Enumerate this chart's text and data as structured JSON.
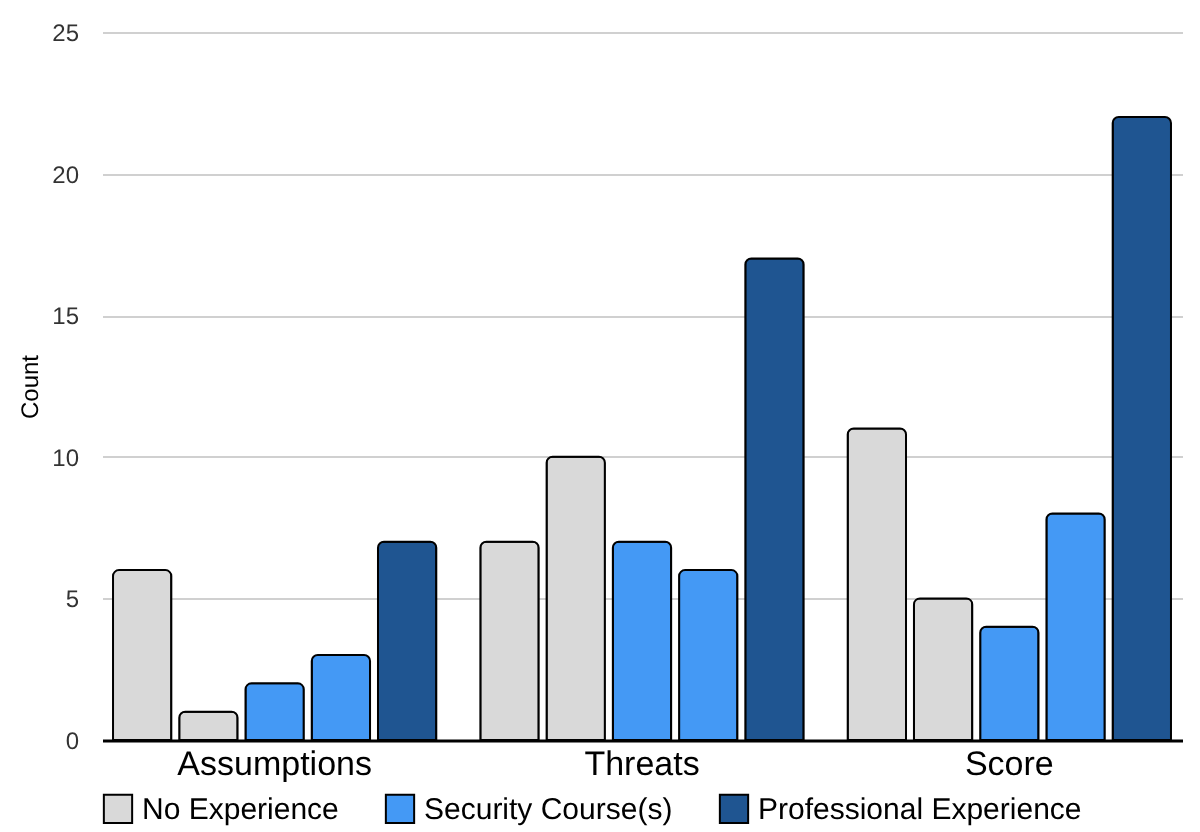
{
  "chart_data": {
    "type": "bar",
    "ylabel": "Count",
    "categories": [
      "Assumptions",
      "Threats",
      "Score"
    ],
    "series": [
      {
        "name": "No Experience",
        "color": "#d9d9d9",
        "values": [
          6,
          7,
          11
        ]
      },
      {
        "color": "#d9d9d9",
        "values": [
          1,
          10,
          5
        ]
      },
      {
        "name": "Security Course(s)",
        "color": "#4499f5",
        "values": [
          2,
          7,
          4
        ]
      },
      {
        "color": "#4499f5",
        "values": [
          3,
          6,
          8
        ]
      },
      {
        "name": "Professional Experience",
        "color": "#1f5591",
        "values": [
          7,
          17,
          22
        ]
      }
    ],
    "ylim": [
      0,
      25
    ],
    "yticks": [
      0,
      5,
      10,
      15,
      20,
      25
    ],
    "grid": "y",
    "legend": "bottom"
  }
}
